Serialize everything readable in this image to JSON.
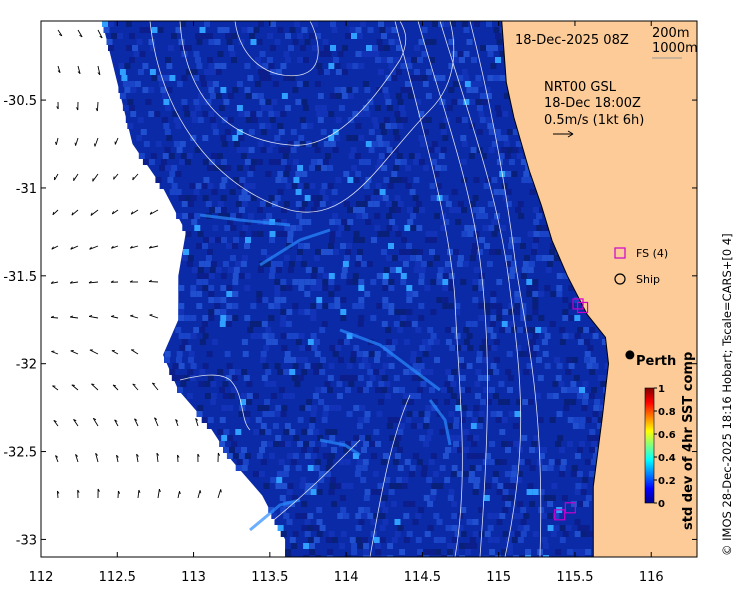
{
  "map": {
    "extent": {
      "lon": [
        112,
        116.3
      ],
      "lat": [
        -33.1,
        -30.05
      ]
    },
    "x_ticks": [
      {
        "v": 112,
        "label": "112"
      },
      {
        "v": 112.5,
        "label": "112.5"
      },
      {
        "v": 113,
        "label": "113"
      },
      {
        "v": 113.5,
        "label": "113.5"
      },
      {
        "v": 114,
        "label": "114"
      },
      {
        "v": 114.5,
        "label": "114.5"
      },
      {
        "v": 115,
        "label": "115"
      },
      {
        "v": 115.5,
        "label": "115.5"
      },
      {
        "v": 116,
        "label": "116"
      }
    ],
    "y_ticks": [
      {
        "v": -30.5,
        "label": "-30.5"
      },
      {
        "v": -31,
        "label": "-31"
      },
      {
        "v": -31.5,
        "label": "-31.5"
      },
      {
        "v": -32,
        "label": "-32"
      },
      {
        "v": -32.5,
        "label": "-32.5"
      },
      {
        "v": -33,
        "label": "-33"
      }
    ],
    "land_color": "#fccb98",
    "ocean_base_color": "#0a2aa8",
    "coast": [
      [
        115.02,
        -30.05
      ],
      [
        115.05,
        -30.4
      ],
      [
        115.1,
        -30.6
      ],
      [
        115.2,
        -30.9
      ],
      [
        115.28,
        -31.1
      ],
      [
        115.35,
        -31.3
      ],
      [
        115.45,
        -31.5
      ],
      [
        115.58,
        -31.72
      ],
      [
        115.7,
        -31.85
      ],
      [
        115.72,
        -32.0
      ],
      [
        115.7,
        -32.15
      ],
      [
        115.68,
        -32.3
      ],
      [
        115.65,
        -32.5
      ],
      [
        115.62,
        -32.7
      ],
      [
        115.62,
        -32.9
      ],
      [
        115.62,
        -33.1
      ]
    ],
    "offshore_edge": [
      [
        112.4,
        -30.05
      ],
      [
        112.5,
        -30.4
      ],
      [
        112.6,
        -30.75
      ],
      [
        112.8,
        -31.0
      ],
      [
        112.95,
        -31.25
      ],
      [
        112.9,
        -31.5
      ],
      [
        112.9,
        -31.75
      ],
      [
        112.8,
        -31.95
      ],
      [
        112.9,
        -32.15
      ],
      [
        113.1,
        -32.35
      ],
      [
        113.25,
        -32.55
      ],
      [
        113.45,
        -32.75
      ],
      [
        113.6,
        -33.0
      ],
      [
        113.6,
        -33.1
      ]
    ]
  },
  "labels": {
    "timestamp": "18-Dec-2025 08Z",
    "iso_200": "200m",
    "iso_1000": "1000m",
    "model_name": "NRT00 GSL",
    "model_time": "18-Dec 18:00Z",
    "velocity_scale": "0.5m/s (1kt 6h)",
    "legend_fs": "FS (4)",
    "legend_ship": "Ship",
    "city": "Perth",
    "side_credit": "© IMOS 28-Dec-2025 18:16 Hobart; Tscale=CARS+[0 4]"
  },
  "colorbar": {
    "title": "std dev of 4hr SST comp",
    "min": 0,
    "max": 1,
    "ticks": [
      {
        "v": 0,
        "label": "0"
      },
      {
        "v": 0.2,
        "label": "0.2"
      },
      {
        "v": 0.4,
        "label": "0.4"
      },
      {
        "v": 0.6,
        "label": "0.6"
      },
      {
        "v": 0.8,
        "label": "0.8"
      },
      {
        "v": 1,
        "label": "1"
      }
    ],
    "stops": [
      "#00008f",
      "#0000ff",
      "#0080ff",
      "#00ffff",
      "#80ff80",
      "#ffff00",
      "#ff8000",
      "#ff0000",
      "#800000"
    ]
  },
  "markers": {
    "fs_color": "#cc00cc",
    "fs": [
      [
        115.52,
        -31.66
      ],
      [
        115.55,
        -31.68
      ],
      [
        115.47,
        -32.82
      ],
      [
        115.4,
        -32.86
      ]
    ],
    "perth": [
      115.86,
      -31.95
    ]
  }
}
